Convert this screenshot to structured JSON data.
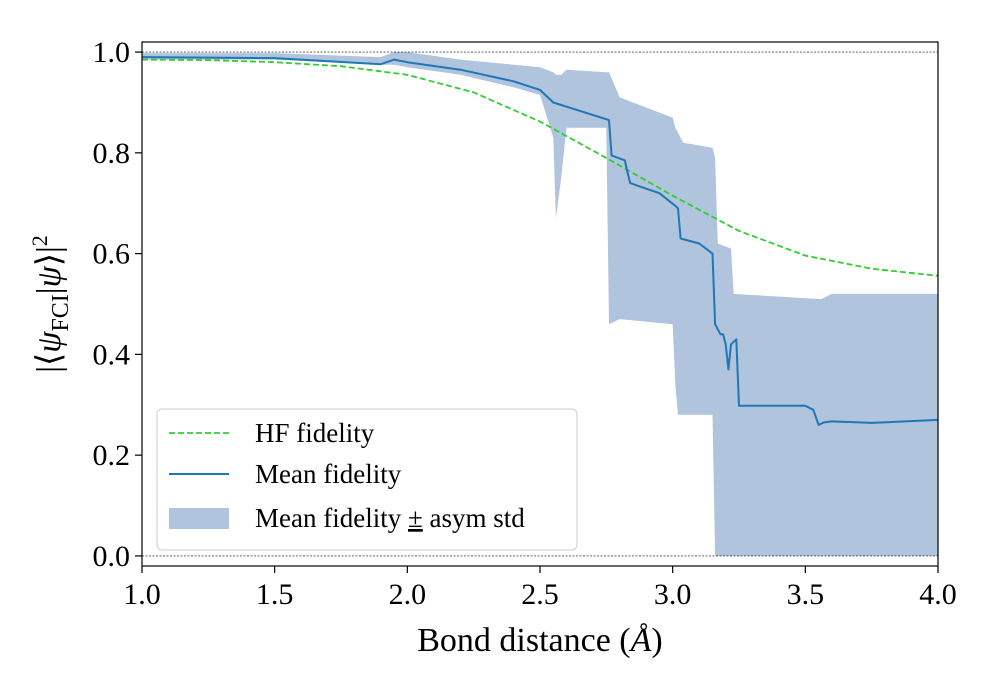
{
  "chart_data": {
    "type": "line",
    "title": "",
    "xlabel": "Bond distance (Å)",
    "xlabel_prefix": "Bond distance (",
    "xlabel_unit": "Å",
    "xlabel_suffix": ")",
    "ylabel": "|⟨ψFCI|ψ⟩|²",
    "xlim": [
      1.0,
      4.0
    ],
    "ylim": [
      -0.02,
      1.02
    ],
    "xticks": [
      1.0,
      1.5,
      2.0,
      2.5,
      3.0,
      3.5,
      4.0
    ],
    "xtick_labels": [
      "1.0",
      "1.5",
      "2.0",
      "2.5",
      "3.0",
      "3.5",
      "4.0"
    ],
    "yticks": [
      0.0,
      0.2,
      0.4,
      0.6,
      0.8,
      1.0
    ],
    "ytick_labels": [
      "0.0",
      "0.2",
      "0.4",
      "0.6",
      "0.8",
      "1.0"
    ],
    "reference_lines": [
      0.0,
      1.0
    ],
    "legend_position": "lower-left",
    "colors": {
      "hf": "#32cd32",
      "mean": "#1f77b4",
      "band": "#b0c4de"
    },
    "series": [
      {
        "name": "HF fidelity",
        "style": "dashed",
        "x": [
          1.0,
          1.25,
          1.5,
          1.75,
          2.0,
          2.25,
          2.5,
          2.75,
          3.0,
          3.25,
          3.5,
          3.75,
          4.0
        ],
        "y": [
          0.985,
          0.984,
          0.98,
          0.972,
          0.955,
          0.92,
          0.862,
          0.79,
          0.715,
          0.645,
          0.596,
          0.57,
          0.556
        ]
      },
      {
        "name": "Mean fidelity",
        "style": "solid",
        "x": [
          1.0,
          1.5,
          1.9,
          1.95,
          2.0,
          2.2,
          2.4,
          2.5,
          2.55,
          2.7,
          2.76,
          2.77,
          2.82,
          2.83,
          2.84,
          2.95,
          3.01,
          3.02,
          3.03,
          3.1,
          3.15,
          3.16,
          3.18,
          3.19,
          3.2,
          3.21,
          3.22,
          3.24,
          3.25,
          3.5,
          3.53,
          3.55,
          3.57,
          3.6,
          3.75,
          4.0
        ],
        "y": [
          0.99,
          0.988,
          0.976,
          0.985,
          0.98,
          0.965,
          0.942,
          0.925,
          0.9,
          0.875,
          0.865,
          0.795,
          0.785,
          0.76,
          0.74,
          0.72,
          0.695,
          0.69,
          0.63,
          0.62,
          0.6,
          0.46,
          0.44,
          0.44,
          0.42,
          0.37,
          0.42,
          0.43,
          0.298,
          0.298,
          0.29,
          0.26,
          0.265,
          0.267,
          0.264,
          0.27
        ]
      }
    ],
    "band": {
      "name": "Mean fidelity ± asym std",
      "legend_label_parts": [
        "Mean fidelity ",
        "±",
        " asym std"
      ],
      "x": [
        1.0,
        1.5,
        1.9,
        1.95,
        2.0,
        2.2,
        2.4,
        2.5,
        2.55,
        2.56,
        2.58,
        2.6,
        2.75,
        2.76,
        2.8,
        3.0,
        3.01,
        3.02,
        3.03,
        3.04,
        3.15,
        3.16,
        3.17,
        3.22,
        3.23,
        3.55,
        3.56,
        3.6,
        4.0
      ],
      "upper": [
        0.998,
        0.998,
        0.99,
        1.0,
        1.0,
        0.985,
        0.975,
        0.97,
        0.96,
        0.955,
        0.955,
        0.965,
        0.96,
        0.96,
        0.91,
        0.87,
        0.85,
        0.84,
        0.83,
        0.82,
        0.81,
        0.79,
        0.62,
        0.61,
        0.52,
        0.51,
        0.51,
        0.52,
        0.52
      ],
      "lower": [
        0.985,
        0.985,
        0.975,
        0.975,
        0.97,
        0.955,
        0.93,
        0.915,
        0.83,
        0.67,
        0.75,
        0.85,
        0.85,
        0.46,
        0.47,
        0.46,
        0.34,
        0.28,
        0.28,
        0.28,
        0.28,
        0.0,
        0.0,
        0.0,
        0.0,
        0.0,
        0.0,
        0.0,
        0.0
      ]
    }
  }
}
